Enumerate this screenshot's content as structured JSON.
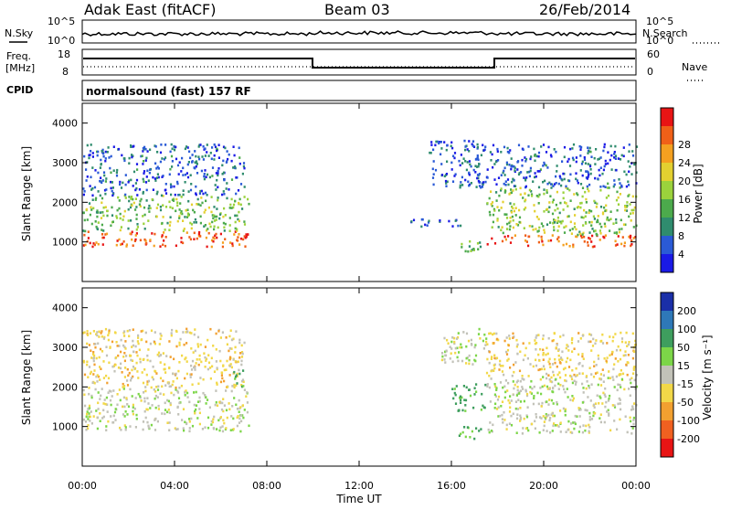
{
  "header": {
    "station": "Adak East (fitACF)",
    "beam": "Beam 03",
    "date": "26/Feb/2014"
  },
  "noise_panel": {
    "left_label": "N.Sky",
    "right_label": "N.Search",
    "left_ticks": [
      "10^5",
      "10^0"
    ],
    "right_ticks": [
      "10^5",
      "10^0"
    ]
  },
  "freq_panel": {
    "left_label_line1": "Freq.",
    "left_label_line2": "[MHz]",
    "right_label": "Nave",
    "left_ticks": [
      "18",
      "8"
    ],
    "right_ticks": [
      "60",
      "0"
    ]
  },
  "cpid_panel": {
    "label": "CPID",
    "text": "normalsound (fast) 157 RF"
  },
  "chart_data": [
    {
      "type": "heatmap",
      "name": "power",
      "ylabel": "Slant Range [km]",
      "yticks": [
        "1000",
        "2000",
        "3000",
        "4000"
      ],
      "ylim": [
        0,
        4500
      ],
      "colorbar_label": "Power [dB]",
      "colorbar_ticks": [
        "4",
        "8",
        "12",
        "16",
        "20",
        "24",
        "28"
      ],
      "colorbar_colors": [
        "#1a1ae6",
        "#2a5ad6",
        "#2f8c6e",
        "#4caa4c",
        "#9bd23c",
        "#e3d030",
        "#f4a020",
        "#f06018",
        "#e81414"
      ],
      "regions": [
        {
          "t0": 0.0,
          "t1": 7.2,
          "r0": 900,
          "r1": 1300,
          "db": 27
        },
        {
          "t0": 0.0,
          "t1": 7.2,
          "r0": 1300,
          "r1": 2200,
          "db": 14
        },
        {
          "t0": 0.0,
          "t1": 7.0,
          "r0": 2200,
          "r1": 3500,
          "db": 6
        },
        {
          "t0": 15.0,
          "t1": 17.2,
          "r0": 2400,
          "r1": 3600,
          "db": 5
        },
        {
          "t0": 14.0,
          "t1": 16.5,
          "r0": 1400,
          "r1": 1600,
          "db": 6
        },
        {
          "t0": 16.3,
          "t1": 17.3,
          "r0": 650,
          "r1": 1050,
          "db": 14
        },
        {
          "t0": 17.5,
          "t1": 24.0,
          "r0": 900,
          "r1": 1200,
          "db": 27
        },
        {
          "t0": 17.5,
          "t1": 24.0,
          "r0": 1200,
          "r1": 2400,
          "db": 15
        },
        {
          "t0": 17.0,
          "t1": 24.0,
          "r0": 2400,
          "r1": 3500,
          "db": 6
        }
      ]
    },
    {
      "type": "heatmap",
      "name": "velocity",
      "ylabel": "Slant Range [km]",
      "yticks": [
        "1000",
        "2000",
        "3000",
        "4000"
      ],
      "ylim": [
        0,
        4500
      ],
      "colorbar_label": "Velocity [m s⁻¹]",
      "colorbar_ticks": [
        "200",
        "100",
        "50",
        "15",
        "-15",
        "-50",
        "-100",
        "-200"
      ],
      "colorbar_colors": [
        "#1a2fa8",
        "#2e78b8",
        "#3e9e5e",
        "#7cd648",
        "#c2c2b8",
        "#f2d848",
        "#f2a030",
        "#f06020",
        "#e81414"
      ],
      "regions": [
        {
          "t0": 0.0,
          "t1": 7.2,
          "r0": 900,
          "r1": 2000,
          "v": 0
        },
        {
          "t0": 0.0,
          "t1": 7.0,
          "r0": 2000,
          "r1": 3500,
          "v": -30
        },
        {
          "t0": 6.5,
          "t1": 7.0,
          "r0": 2000,
          "r1": 2500,
          "v": 60
        },
        {
          "t0": 15.5,
          "t1": 17.5,
          "r0": 2600,
          "r1": 3500,
          "v": 5
        },
        {
          "t0": 16.3,
          "t1": 17.3,
          "r0": 700,
          "r1": 1050,
          "v": 60
        },
        {
          "t0": 16.0,
          "t1": 17.5,
          "r0": 1400,
          "r1": 2100,
          "v": 60
        },
        {
          "t0": 17.5,
          "t1": 24.0,
          "r0": 850,
          "r1": 2300,
          "v": 0
        },
        {
          "t0": 17.5,
          "t1": 24.0,
          "r0": 2300,
          "r1": 3400,
          "v": -30
        }
      ]
    }
  ],
  "x_axis": {
    "label": "Time UT",
    "ticks": [
      "00:00",
      "04:00",
      "08:00",
      "12:00",
      "16:00",
      "20:00",
      "00:00"
    ]
  },
  "colors": {
    "axis": "#000000",
    "background": "#ffffff"
  }
}
